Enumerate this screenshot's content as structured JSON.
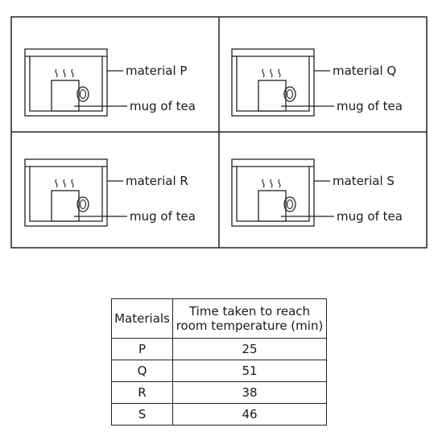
{
  "panels": [
    {
      "material_label": "material P",
      "mug_label": "mug of tea"
    },
    {
      "material_label": "material Q",
      "mug_label": "mug of tea"
    },
    {
      "material_label": "material R",
      "mug_label": "mug of tea"
    },
    {
      "material_label": "material S",
      "mug_label": "mug of tea"
    }
  ],
  "table": {
    "header_material": "Materials",
    "header_time_line1": "Time taken to reach",
    "header_time_line2": "room temperature (min)",
    "rows": [
      {
        "material": "P",
        "time": "25"
      },
      {
        "material": "Q",
        "time": "51"
      },
      {
        "material": "R",
        "time": "38"
      },
      {
        "material": "S",
        "time": "46"
      }
    ]
  }
}
